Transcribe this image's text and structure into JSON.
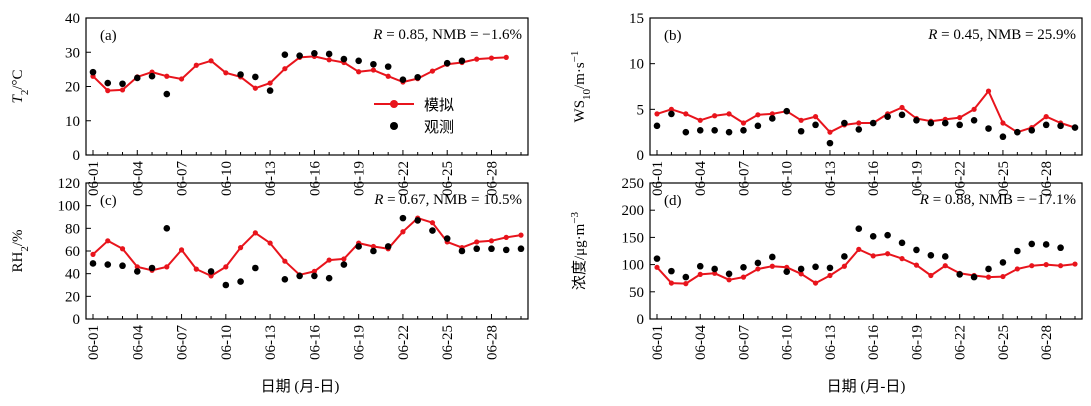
{
  "figure": {
    "xlabel": "日期 (月-日)",
    "legend": {
      "sim_label": "模拟",
      "obs_label": "观测",
      "placement": "panel-a-right"
    },
    "colors": {
      "sim": "#e8141c",
      "obs": "#000000",
      "axis": "#000000"
    }
  },
  "chart_data": [
    {
      "type": "line",
      "panel": "(a)",
      "ylabel_main": "T",
      "ylabel_sub": "2",
      "ylabel_unit": "/°C",
      "annotation_r": "R",
      "annotation_rest": " = 0.85, NMB = −1.6%",
      "ylim": [
        0,
        40
      ],
      "yticks": [
        0,
        10,
        20,
        30,
        40
      ],
      "x_start": "06-01",
      "xticks": [
        "06-01",
        "06-04",
        "06-07",
        "06-10",
        "06-13",
        "06-16",
        "06-19",
        "06-22",
        "06-25",
        "06-28"
      ],
      "xtick_days": [
        1,
        4,
        7,
        10,
        13,
        16,
        19,
        22,
        25,
        28
      ],
      "days": 30,
      "series": [
        {
          "name": "模拟",
          "kind": "line",
          "color": "#e8141c",
          "values": [
            23.0,
            18.8,
            19.0,
            22.8,
            24.2,
            23.0,
            22.2,
            26.2,
            27.5,
            24.0,
            22.8,
            19.5,
            21.0,
            25.2,
            28.5,
            28.8,
            27.8,
            27.0,
            24.3,
            24.8,
            23.0,
            21.3,
            22.3,
            24.5,
            26.5,
            27.0,
            28.0,
            28.3,
            28.5,
            null
          ]
        },
        {
          "name": "观测",
          "kind": "scatter",
          "color": "#000000",
          "values": [
            24.2,
            21.0,
            20.8,
            22.5,
            23.0,
            17.8,
            null,
            null,
            null,
            null,
            23.5,
            22.8,
            18.8,
            29.3,
            29.0,
            29.7,
            29.5,
            28.0,
            27.5,
            26.5,
            25.8,
            22.0,
            22.7,
            null,
            26.8,
            27.5,
            null,
            null,
            null,
            null
          ]
        }
      ]
    },
    {
      "type": "line",
      "panel": "(b)",
      "ylabel_main": "WS",
      "ylabel_sub": "10",
      "ylabel_unit": "/m·s",
      "ylabel_sup": "−1",
      "annotation_r": "R",
      "annotation_rest": " = 0.45, NMB = 25.9%",
      "ylim": [
        0,
        15
      ],
      "yticks": [
        0,
        5,
        10,
        15
      ],
      "x_start": "06-01",
      "xticks": [
        "06-01",
        "06-04",
        "06-07",
        "06-10",
        "06-13",
        "06-16",
        "06-19",
        "06-22",
        "06-25",
        "06-28"
      ],
      "xtick_days": [
        1,
        4,
        7,
        10,
        13,
        16,
        19,
        22,
        25,
        28
      ],
      "days": 30,
      "series": [
        {
          "name": "模拟",
          "kind": "line",
          "color": "#e8141c",
          "values": [
            4.5,
            5.0,
            4.5,
            3.8,
            4.3,
            4.5,
            3.5,
            4.4,
            4.5,
            4.8,
            3.8,
            4.2,
            2.5,
            3.3,
            3.5,
            3.5,
            4.5,
            5.2,
            4.0,
            3.7,
            3.9,
            4.1,
            5.0,
            7.0,
            3.5,
            2.5,
            3.0,
            4.2,
            3.5,
            3.0
          ]
        },
        {
          "name": "观测",
          "kind": "scatter",
          "color": "#000000",
          "values": [
            3.2,
            4.5,
            2.5,
            2.7,
            2.7,
            2.5,
            2.7,
            3.2,
            4.0,
            4.8,
            2.6,
            3.3,
            1.3,
            3.5,
            2.8,
            3.5,
            4.2,
            4.4,
            3.8,
            3.5,
            3.5,
            3.3,
            3.8,
            2.9,
            2.0,
            2.5,
            2.7,
            3.3,
            3.2,
            3.0
          ]
        }
      ]
    },
    {
      "type": "line",
      "panel": "(c)",
      "ylabel_main": "RH",
      "ylabel_sub": "2",
      "ylabel_unit": "/%",
      "annotation_r": "R",
      "annotation_rest": " = 0.67, NMB = 10.5%",
      "ylim": [
        0,
        120
      ],
      "yticks": [
        0,
        20,
        40,
        60,
        80,
        100,
        120
      ],
      "x_start": "06-01",
      "xticks": [
        "06-01",
        "06-04",
        "06-07",
        "06-10",
        "06-13",
        "06-16",
        "06-19",
        "06-22",
        "06-25",
        "06-28"
      ],
      "xtick_days": [
        1,
        4,
        7,
        10,
        13,
        16,
        19,
        22,
        25,
        28
      ],
      "days": 30,
      "series": [
        {
          "name": "模拟",
          "kind": "line",
          "color": "#e8141c",
          "values": [
            57,
            69,
            62,
            46,
            43,
            46,
            61,
            44,
            38,
            46,
            63,
            76,
            67,
            51,
            39,
            42,
            52,
            53,
            67,
            64,
            62,
            77,
            89,
            85,
            68,
            63,
            68,
            69,
            72,
            74
          ]
        },
        {
          "name": "观测",
          "kind": "scatter",
          "color": "#000000",
          "values": [
            49,
            48,
            47,
            42,
            45,
            80,
            null,
            null,
            42,
            30,
            33,
            45,
            null,
            35,
            38,
            38,
            36,
            48,
            64,
            60,
            64,
            89,
            87,
            78,
            71,
            60,
            62,
            62,
            61,
            62
          ]
        }
      ]
    },
    {
      "type": "line",
      "panel": "(d)",
      "ylabel_main": "浓度",
      "ylabel_sub": "",
      "ylabel_unit": "/μg·m",
      "ylabel_sup": "−3",
      "annotation_r": "R",
      "annotation_rest": " = 0.88, NMB = −17.1%",
      "ylim": [
        0,
        250
      ],
      "yticks": [
        0,
        50,
        100,
        150,
        200,
        250
      ],
      "x_start": "06-01",
      "xticks": [
        "06-01",
        "06-04",
        "06-07",
        "06-10",
        "06-13",
        "06-16",
        "06-19",
        "06-22",
        "06-25",
        "06-28"
      ],
      "xtick_days": [
        1,
        4,
        7,
        10,
        13,
        16,
        19,
        22,
        25,
        28
      ],
      "days": 30,
      "series": [
        {
          "name": "模拟",
          "kind": "line",
          "color": "#e8141c",
          "values": [
            95,
            66,
            65,
            82,
            84,
            72,
            77,
            92,
            97,
            95,
            83,
            66,
            80,
            97,
            128,
            116,
            120,
            111,
            99,
            80,
            98,
            84,
            80,
            77,
            78,
            92,
            98,
            100,
            98,
            101
          ]
        },
        {
          "name": "观测",
          "kind": "scatter",
          "color": "#000000",
          "values": [
            111,
            88,
            77,
            97,
            92,
            83,
            95,
            103,
            114,
            87,
            92,
            96,
            94,
            115,
            166,
            152,
            154,
            140,
            127,
            117,
            115,
            82,
            77,
            92,
            104,
            125,
            138,
            137,
            131,
            null
          ]
        }
      ]
    }
  ]
}
